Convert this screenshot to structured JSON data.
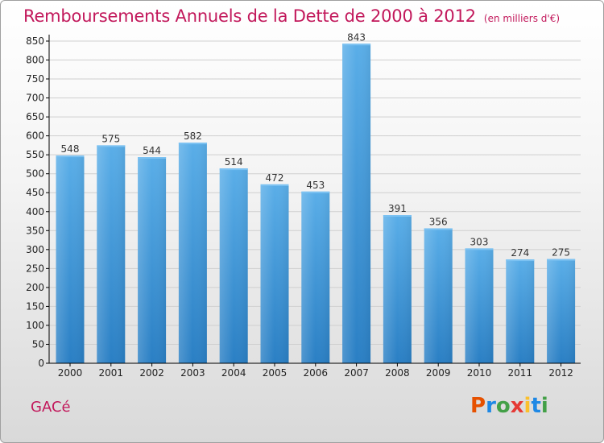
{
  "title": "Remboursements Annuels de la Dette de 2000 à 2012",
  "unit": "(en milliers d'€)",
  "commune": "GACé",
  "logo": {
    "letters": [
      "P",
      "r",
      "o",
      "x",
      "i",
      "t",
      "i"
    ],
    "colors": [
      "#e65100",
      "#1e88e5",
      "#43a047",
      "#e53935",
      "#fbc02d",
      "#1e88e5",
      "#43a047"
    ]
  },
  "colors": {
    "title": "#c2185b",
    "bar_light": "#5aaee8",
    "bar_dark": "#2a7fc4",
    "axis": "#000000",
    "grid": "#cfcfcf"
  },
  "chart_data": {
    "type": "bar",
    "title": "Remboursements Annuels de la Dette de 2000 à 2012",
    "xlabel": "",
    "ylabel": "",
    "ylim": [
      0,
      850
    ],
    "ytick_step": 50,
    "grid": true,
    "categories": [
      "2000",
      "2001",
      "2002",
      "2003",
      "2004",
      "2005",
      "2006",
      "2007",
      "2008",
      "2009",
      "2010",
      "2011",
      "2012"
    ],
    "values": [
      548,
      575,
      544,
      582,
      514,
      472,
      453,
      843,
      391,
      356,
      303,
      274,
      275
    ]
  }
}
